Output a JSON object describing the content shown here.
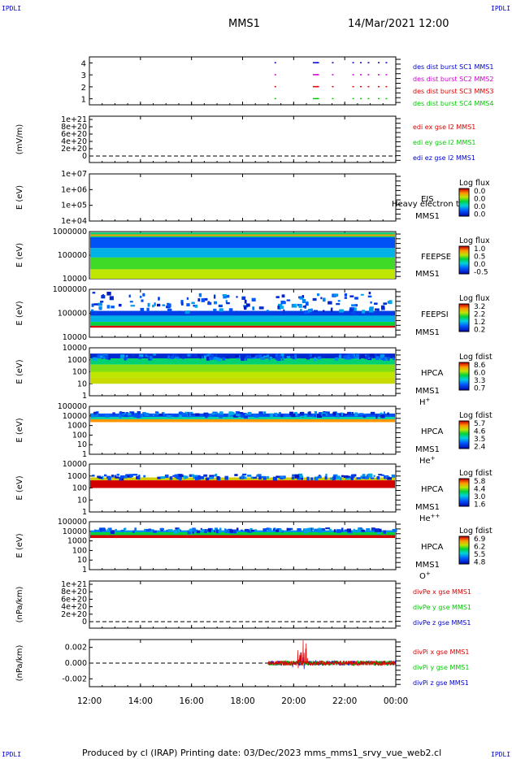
{
  "corners": {
    "tl": "IPDLI",
    "tr": "IPDLI",
    "bl": "IPDLI",
    "br": "IPDLI"
  },
  "header": {
    "spacecraft": "MMS1",
    "datetime": "14/Mar/2021 12:00"
  },
  "footer": {
    "text": "Produced by cl (IRAP)   Printing date: 03/Dec/2023   mms_mms1_srvy_vue_web2.cl"
  },
  "colors": {
    "blue": "#0000cc",
    "magenta": "#cc00cc",
    "red": "#dd0000",
    "green": "#00cc00"
  },
  "chart_data": [
    {
      "type": "scatter",
      "ylim": [
        0.5,
        4.5
      ],
      "yticks": [
        "1",
        "2",
        "3",
        "4"
      ],
      "series": [
        {
          "name": "des dist burst SC1 MMS1",
          "color": "#0000cc",
          "y": 4,
          "x": [
            19.25,
            20.75,
            20.9,
            21.5,
            22.3,
            22.6,
            22.9,
            23.3,
            23.6
          ]
        },
        {
          "name": "des dist burst SC2 MMS2",
          "color": "#cc00cc",
          "y": 3,
          "x": [
            19.25,
            20.75,
            20.9,
            21.5,
            22.3,
            22.6,
            22.9,
            23.3,
            23.6
          ]
        },
        {
          "name": "des dist burst SC3 MMS3",
          "color": "#dd0000",
          "y": 2,
          "x": [
            19.25,
            20.75,
            20.9,
            21.5,
            22.3,
            22.6,
            22.9,
            23.3,
            23.6
          ]
        },
        {
          "name": "des dist burst SC4 MMS4",
          "color": "#00cc00",
          "y": 1,
          "x": [
            19.25,
            20.75,
            20.9,
            21.5,
            22.3,
            22.6,
            22.9,
            23.3,
            23.6
          ]
        }
      ]
    },
    {
      "type": "line",
      "ylabel": "(mV/m)",
      "ylim": [
        0,
        1.2e+21
      ],
      "yticks": [
        "0",
        "2e+20",
        "4e+20",
        "6e+20",
        "8e+20",
        "1e+21"
      ],
      "series": [
        {
          "name": "edi ex gse l2 MMS1"
        },
        {
          "name": "edi ey gse l2 MMS1"
        },
        {
          "name": "edi ez gse l2 MMS1"
        }
      ]
    },
    {
      "type": "heatmap",
      "ylabel": "E (eV)",
      "yticks": [
        "1e+04",
        "1e+05",
        "1e+06",
        "1e+07"
      ],
      "instrument": "EIS",
      "sc": "MMS1",
      "overlay": "Heavy electron to",
      "colorbar": {
        "title": "Log flux",
        "ticks": [
          "0.0",
          "0.0",
          "0.0",
          "0.0"
        ]
      }
    },
    {
      "type": "heatmap",
      "ylabel": "E (eV)",
      "yticks": [
        "10000",
        "100000",
        "1000000"
      ],
      "instrument": "FEEPSE",
      "sc": "MMS1",
      "colorbar": {
        "title": "Log flux",
        "ticks": [
          "1.0",
          "0.5",
          "0.0",
          "-0.5"
        ]
      }
    },
    {
      "type": "heatmap",
      "ylabel": "E (eV)",
      "yticks": [
        "10000",
        "100000",
        "1000000"
      ],
      "instrument": "FEEPSI",
      "sc": "MMS1",
      "colorbar": {
        "title": "Log flux",
        "ticks": [
          "3.2",
          "2.2",
          "1.2",
          "0.2"
        ]
      }
    },
    {
      "type": "heatmap",
      "ylabel": "E (eV)",
      "yticks": [
        "1",
        "10",
        "100",
        "1000",
        "10000"
      ],
      "instrument": "HPCA",
      "sc": "MMS1",
      "species": "H",
      "charge": "+",
      "colorbar": {
        "title": "Log fdist",
        "ticks": [
          "8.6",
          "6.0",
          "3.3",
          "0.7"
        ]
      }
    },
    {
      "type": "heatmap",
      "ylabel": "E (eV)",
      "yticks": [
        "1",
        "10",
        "100",
        "1000",
        "10000",
        "100000"
      ],
      "instrument": "HPCA",
      "sc": "MMS1",
      "species": "He",
      "charge": "+",
      "colorbar": {
        "title": "Log fdist",
        "ticks": [
          "5.7",
          "4.6",
          "3.5",
          "2.4"
        ]
      }
    },
    {
      "type": "heatmap",
      "ylabel": "E (eV)",
      "yticks": [
        "1",
        "10",
        "100",
        "1000",
        "10000"
      ],
      "instrument": "HPCA",
      "sc": "MMS1",
      "species": "He",
      "charge": "++",
      "colorbar": {
        "title": "Log fdist",
        "ticks": [
          "5.8",
          "4.4",
          "3.0",
          "1.6"
        ]
      }
    },
    {
      "type": "heatmap",
      "ylabel": "E (eV)",
      "yticks": [
        "1",
        "10",
        "100",
        "1000",
        "10000",
        "100000"
      ],
      "instrument": "HPCA",
      "sc": "MMS1",
      "species": "O",
      "charge": "+",
      "colorbar": {
        "title": "Log fdist",
        "ticks": [
          "6.9",
          "6.2",
          "5.5",
          "4.8"
        ]
      }
    },
    {
      "type": "line",
      "ylabel": "(nPa/km)",
      "ylim": [
        0,
        1.2e+21
      ],
      "yticks": [
        "0",
        "2e+20",
        "4e+20",
        "6e+20",
        "8e+20",
        "1e+21"
      ],
      "series": [
        {
          "name": "divPe x gse MMS1"
        },
        {
          "name": "divPe y gse MMS1"
        },
        {
          "name": "divPe z gse MMS1"
        }
      ]
    },
    {
      "type": "line",
      "ylabel": "(nPa/km)",
      "ylim": [
        -0.003,
        0.003
      ],
      "yticks": [
        "-0.002",
        "0.000",
        "0.002"
      ],
      "data_start": 19.0,
      "series": [
        {
          "name": "divPi x gse MMS1"
        },
        {
          "name": "divPi y gse MMS1"
        },
        {
          "name": "divPi z gse MMS1"
        }
      ]
    }
  ],
  "xaxis": {
    "range": [
      12,
      24
    ],
    "ticks": [
      12,
      14,
      16,
      18,
      20,
      22,
      24
    ],
    "tick_labels": [
      "12:00",
      "14:00",
      "16:00",
      "18:00",
      "20:00",
      "22:00",
      "00:00"
    ]
  }
}
